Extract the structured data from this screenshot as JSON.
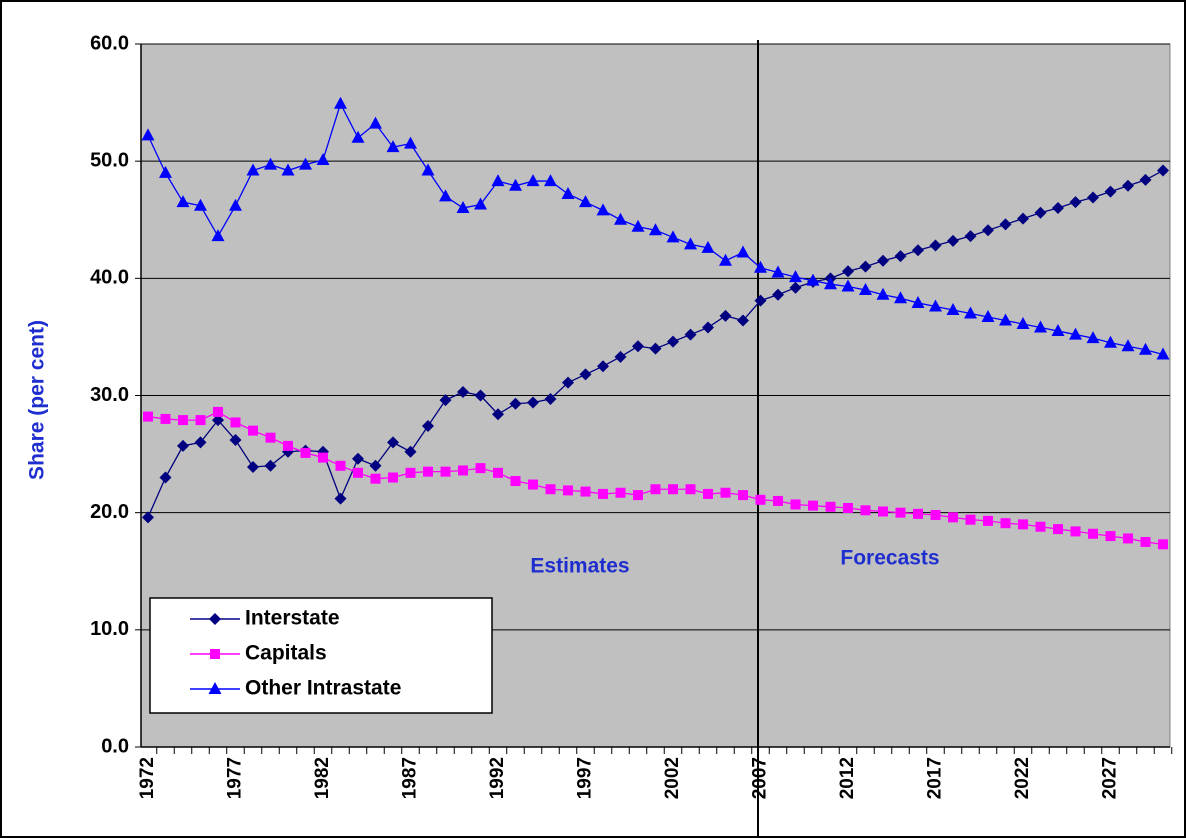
{
  "chart_data": {
    "type": "line",
    "ylabel": "Share (per cent)",
    "annotations": [
      {
        "text": "Estimates"
      },
      {
        "text": "Forecasts"
      }
    ],
    "categories": [
      "1972",
      null,
      null,
      null,
      null,
      "1977",
      null,
      null,
      null,
      null,
      "1982",
      null,
      null,
      null,
      null,
      "1987",
      null,
      null,
      null,
      null,
      "1992",
      null,
      null,
      null,
      null,
      "1997",
      null,
      null,
      null,
      null,
      "2002",
      null,
      null,
      null,
      null,
      "2007",
      null,
      null,
      null,
      null,
      "2012",
      null,
      null,
      null,
      null,
      "2017",
      null,
      null,
      null,
      null,
      "2022",
      null,
      null,
      null,
      null,
      "2027",
      null,
      null,
      null
    ],
    "series": [
      {
        "name": "Interstate",
        "color": "#000080",
        "marker": "diamond",
        "values": [
          19.6,
          23,
          25.7,
          26,
          27.9,
          26.2,
          23.9,
          24,
          25.2,
          25.3,
          25.2,
          21.2,
          24.6,
          24,
          26,
          25.2,
          27.4,
          29.6,
          30.3,
          30,
          28.4,
          29.3,
          29.4,
          29.7,
          31.1,
          31.8,
          32.5,
          33.3,
          34.2,
          34,
          34.6,
          35.2,
          35.8,
          36.8,
          36.4,
          38.1,
          38.6,
          39.2,
          39.7,
          40,
          40.6,
          41,
          41.5,
          41.9,
          42.4,
          42.8,
          43.2,
          43.6,
          44.1,
          44.6,
          45.1,
          45.6,
          46,
          46.5,
          46.9,
          47.4,
          47.9,
          48.4,
          49.2
        ]
      },
      {
        "name": "Capitals",
        "color": "#ff00ff",
        "marker": "square",
        "values": [
          28.2,
          28,
          27.9,
          27.9,
          28.6,
          27.7,
          27,
          26.4,
          25.7,
          25.1,
          24.7,
          24,
          23.4,
          22.9,
          23,
          23.4,
          23.5,
          23.5,
          23.6,
          23.8,
          23.4,
          22.7,
          22.4,
          22,
          21.9,
          21.8,
          21.6,
          21.7,
          21.5,
          22,
          22,
          22,
          21.6,
          21.7,
          21.5,
          21.1,
          21,
          20.7,
          20.6,
          20.5,
          20.4,
          20.2,
          20.1,
          20,
          19.9,
          19.8,
          19.6,
          19.4,
          19.3,
          19.1,
          19,
          18.8,
          18.6,
          18.4,
          18.2,
          18,
          17.8,
          17.5,
          17.3
        ]
      },
      {
        "name": "Other Intrastate",
        "color": "#0000ff",
        "marker": "triangle",
        "values": [
          52.2,
          49,
          46.5,
          46.2,
          43.6,
          46.2,
          49.2,
          49.7,
          49.2,
          49.7,
          50.1,
          54.9,
          52,
          53.2,
          51.2,
          51.5,
          49.2,
          47,
          46,
          46.3,
          48.3,
          47.9,
          48.3,
          48.3,
          47.2,
          46.5,
          45.8,
          45,
          44.4,
          44.1,
          43.5,
          42.9,
          42.6,
          41.5,
          42.2,
          40.9,
          40.5,
          40.1,
          39.8,
          39.5,
          39.3,
          39,
          38.6,
          38.3,
          37.9,
          37.6,
          37.3,
          37,
          36.7,
          36.4,
          36.1,
          35.8,
          35.5,
          35.2,
          34.9,
          34.5,
          34.2,
          33.9,
          33.5
        ]
      }
    ],
    "ylim": [
      0,
      60
    ],
    "yticks": [
      {
        "value": 0,
        "label": "0.0"
      },
      {
        "value": 10,
        "label": "10.0"
      },
      {
        "value": 20,
        "label": "20.0"
      },
      {
        "value": 30,
        "label": "30.0"
      },
      {
        "value": 40,
        "label": "40.0"
      },
      {
        "value": 50,
        "label": "50.0"
      },
      {
        "value": 60,
        "label": "60.0"
      }
    ],
    "grid": true,
    "legend": "lower left",
    "background": "#c0c0c0"
  }
}
